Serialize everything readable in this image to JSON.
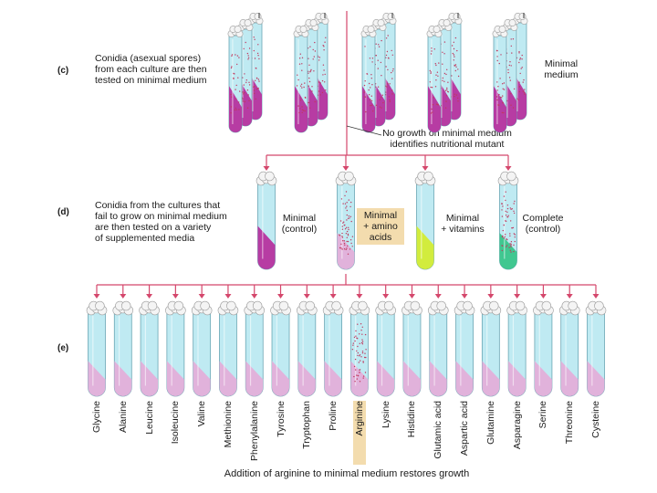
{
  "steps": {
    "c": {
      "label": "(c)",
      "text_lines": [
        "Conidia (asexual spores)",
        "from each culture are then",
        "tested on minimal medium"
      ],
      "medium_lines": [
        "Minimal",
        "medium"
      ],
      "result_lines": [
        "No growth on minimal medium",
        "identifies nutritional mutant"
      ]
    },
    "d": {
      "label": "(d)",
      "text_lines": [
        "Conidia from the cultures that",
        "fail to grow on minimal medium",
        "are then tested on a variety",
        "of supplemented media"
      ],
      "media": [
        {
          "lines": [
            "Minimal",
            "(control)"
          ],
          "fill": "#b6339e",
          "growth": false,
          "highlight": false
        },
        {
          "lines": [
            "Minimal",
            "+ amino",
            "acids"
          ],
          "fill": "#e3afd9",
          "growth": true,
          "highlight": true
        },
        {
          "lines": [
            "Minimal",
            "+ vitamins"
          ],
          "fill": "#d3ec33",
          "growth": false,
          "highlight": false
        },
        {
          "lines": [
            "Complete",
            "(control)"
          ],
          "fill": "#39c58a",
          "growth": true,
          "highlight": false
        }
      ]
    },
    "e": {
      "label": "(e)",
      "amino_acids": [
        "Glycine",
        "Alanine",
        "Leucine",
        "Isoleucine",
        "Valine",
        "Methionine",
        "Phenylalanine",
        "Tyrosine",
        "Tryptophan",
        "Proline",
        "Arginine",
        "Lysine",
        "Histidine",
        "Glutamic acid",
        "Aspartic acid",
        "Glutamine",
        "Asparagine",
        "Serine",
        "Threonine",
        "Cysteine"
      ],
      "growth_index": 10,
      "caption": "Addition of arginine to minimal medium restores growth"
    }
  },
  "colors": {
    "arrow": "#d4476c",
    "tube_glass": "#bfeaf2",
    "tube_outline": "#6aa6b4",
    "cotton": "#f4f4f4",
    "medium_minimal": "#b6339e",
    "medium_amino": "#e3afd9",
    "growth_dots": "#c0395e",
    "highlight": "#f3dcae"
  }
}
